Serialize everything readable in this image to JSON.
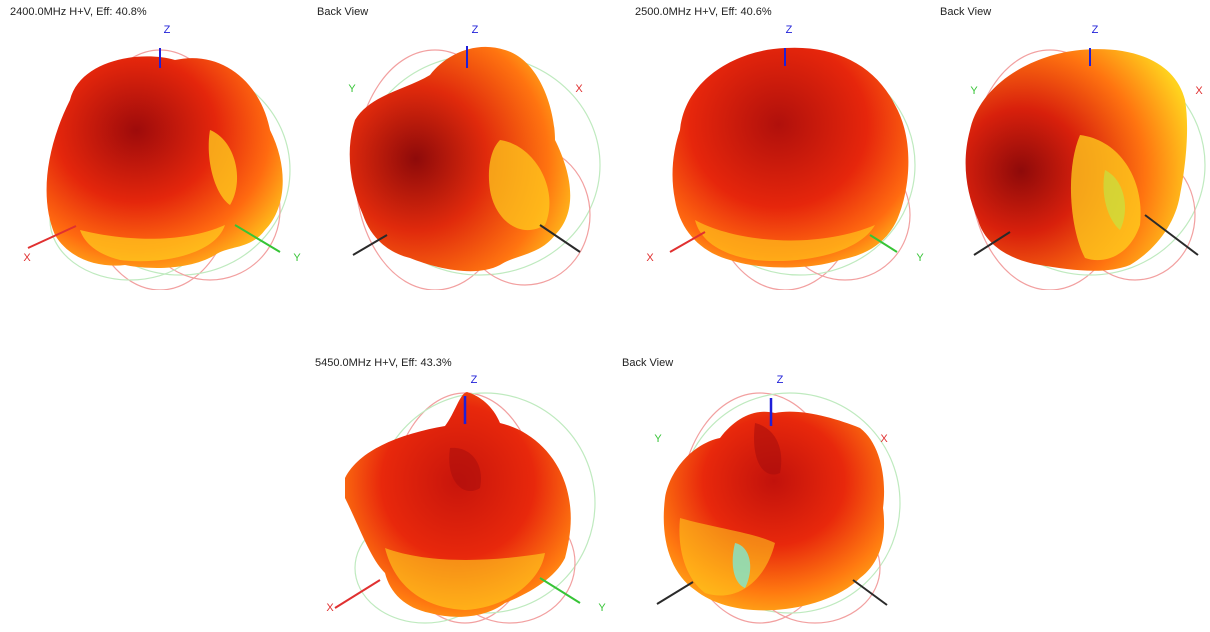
{
  "colors": {
    "x_axis": "#e03030",
    "y_axis": "#36c436",
    "z_axis": "#1f1fd8",
    "hidden_axis": "#2a2a2a",
    "pattern_hot": "#a50c0c",
    "pattern_mid": "#ec2a0e",
    "pattern_warm": "#ff7a10",
    "pattern_yellow": "#ffd21e",
    "pattern_cyan": "#7fe8d0"
  },
  "patterns": [
    {
      "front": {
        "caption": "2400.0MHz H+V, Eff: 40.8%",
        "x_label": "X",
        "y_label": "Y",
        "z_label": "Z"
      },
      "back": {
        "caption": "Back View",
        "x_label": "X",
        "y_label": "Y",
        "z_label": "Z"
      }
    },
    {
      "front": {
        "caption": "2500.0MHz H+V, Eff: 40.6%",
        "x_label": "X",
        "y_label": "Y",
        "z_label": "Z"
      },
      "back": {
        "caption": "Back View",
        "x_label": "X",
        "y_label": "Y",
        "z_label": "Z"
      }
    },
    {
      "front": {
        "caption": "5450.0MHz H+V, Eff: 43.3%",
        "x_label": "X",
        "y_label": "Y",
        "z_label": "Z"
      },
      "back": {
        "caption": "Back View",
        "x_label": "X",
        "y_label": "Y",
        "z_label": "Z"
      }
    }
  ]
}
